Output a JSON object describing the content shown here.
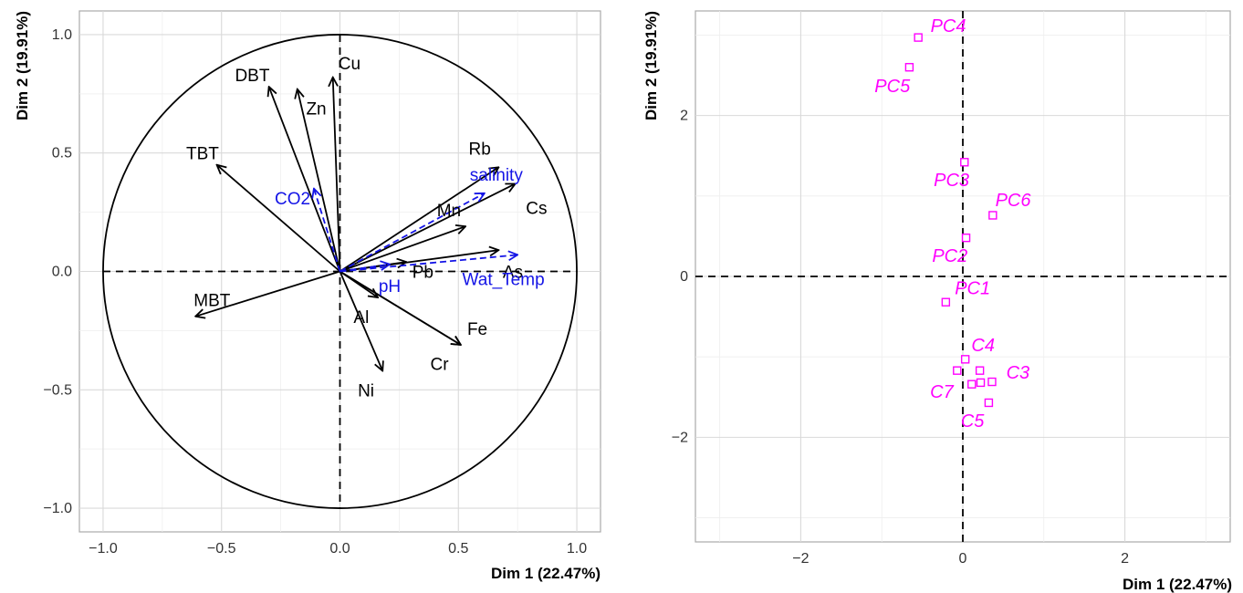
{
  "chart_data": [
    {
      "type": "scatter",
      "subtype": "pca-variable-correlation-circle",
      "xlabel": "Dim 1 (22.47%)",
      "ylabel": "Dim 2 (19.91%)",
      "xlim": [
        -1.1,
        1.1
      ],
      "ylim": [
        -1.1,
        1.1
      ],
      "xticks": [
        -1.0,
        -0.5,
        0.0,
        0.5,
        1.0
      ],
      "yticks": [
        -1.0,
        -0.5,
        0.0,
        0.5,
        1.0
      ],
      "xtick_labels": [
        "−1.0",
        "−0.5",
        "0.0",
        "0.5",
        "1.0"
      ],
      "ytick_labels": [
        "−1.0",
        "−0.5",
        "0.0",
        "0.5",
        "1.0"
      ],
      "grid": true,
      "unit_circle": true,
      "colors": {
        "active": "#000000",
        "supplementary": "#1414e6"
      },
      "active_variables": [
        {
          "name": "Cu",
          "x": -0.03,
          "y": 0.82,
          "lx": 0.04,
          "ly": 0.88
        },
        {
          "name": "DBT",
          "x": -0.3,
          "y": 0.78,
          "lx": -0.37,
          "ly": 0.83
        },
        {
          "name": "Zn",
          "x": -0.18,
          "y": 0.77,
          "lx": -0.1,
          "ly": 0.69
        },
        {
          "name": "TBT",
          "x": -0.52,
          "y": 0.45,
          "lx": -0.58,
          "ly": 0.5
        },
        {
          "name": "Rb",
          "x": 0.67,
          "y": 0.44,
          "lx": 0.59,
          "ly": 0.52
        },
        {
          "name": "Cs",
          "x": 0.74,
          "y": 0.37,
          "lx": 0.83,
          "ly": 0.27
        },
        {
          "name": "Mn",
          "x": 0.53,
          "y": 0.19,
          "lx": 0.46,
          "ly": 0.26
        },
        {
          "name": "As",
          "x": 0.67,
          "y": 0.09,
          "lx": 0.73,
          "ly": 0.0
        },
        {
          "name": "Pb",
          "x": 0.28,
          "y": 0.04,
          "lx": 0.35,
          "ly": 0.0
        },
        {
          "name": "Al",
          "x": 0.16,
          "y": -0.11,
          "lx": 0.09,
          "ly": -0.19
        },
        {
          "name": "Fe",
          "x": 0.51,
          "y": -0.31,
          "lx": 0.58,
          "ly": -0.24
        },
        {
          "name": "Cr",
          "x": 0.51,
          "y": -0.31,
          "lx": 0.42,
          "ly": -0.39
        },
        {
          "name": "Ni",
          "x": 0.18,
          "y": -0.42,
          "lx": 0.11,
          "ly": -0.5
        },
        {
          "name": "MBT",
          "x": -0.61,
          "y": -0.19,
          "lx": -0.54,
          "ly": -0.12
        }
      ],
      "supplementary_variables": [
        {
          "name": "salinity",
          "x": 0.61,
          "y": 0.33,
          "lx": 0.66,
          "ly": 0.41
        },
        {
          "name": "CO2",
          "x": -0.11,
          "y": 0.35,
          "lx": -0.2,
          "ly": 0.31
        },
        {
          "name": "pH",
          "x": 0.21,
          "y": 0.03,
          "lx": 0.21,
          "ly": -0.06
        },
        {
          "name": "Wat_Temp",
          "x": 0.75,
          "y": 0.07,
          "lx": 0.69,
          "ly": -0.03
        }
      ]
    },
    {
      "type": "scatter",
      "subtype": "pca-individuals",
      "xlabel": "Dim 1 (22.47%)",
      "ylabel": "Dim 2 (19.91%)",
      "xlim": [
        -3.3,
        3.3
      ],
      "ylim": [
        -3.3,
        3.3
      ],
      "xticks": [
        -2,
        0,
        2
      ],
      "yticks": [
        -2,
        0,
        2
      ],
      "xtick_labels": [
        "−2",
        "0",
        "2"
      ],
      "ytick_labels": [
        "−2",
        "0",
        "2"
      ],
      "grid": true,
      "color": "#ff00ff",
      "marker": "open-square",
      "points": [
        {
          "name": "PC4",
          "x": -0.55,
          "y": 2.97,
          "lx": -0.18,
          "ly": 3.12
        },
        {
          "name": "PC5",
          "x": -0.66,
          "y": 2.6,
          "lx": -0.87,
          "ly": 2.37
        },
        {
          "name": "PC3",
          "x": 0.02,
          "y": 1.42,
          "lx": -0.14,
          "ly": 1.2
        },
        {
          "name": "PC6",
          "x": 0.37,
          "y": 0.76,
          "lx": 0.62,
          "ly": 0.95
        },
        {
          "name": "PC2",
          "x": 0.04,
          "y": 0.48,
          "lx": -0.16,
          "ly": 0.26
        },
        {
          "name": "PC1",
          "x": -0.21,
          "y": -0.32,
          "lx": 0.12,
          "ly": -0.14
        }
      ],
      "unlabeled_points": [
        {
          "x": 0.03,
          "y": -1.03
        },
        {
          "x": -0.07,
          "y": -1.17
        },
        {
          "x": 0.21,
          "y": -1.17
        },
        {
          "x": 0.11,
          "y": -1.34
        },
        {
          "x": 0.22,
          "y": -1.32
        },
        {
          "x": 0.36,
          "y": -1.31
        },
        {
          "x": 0.32,
          "y": -1.57
        }
      ],
      "cluster_labels": [
        {
          "name": "C4",
          "lx": 0.25,
          "ly": -0.85
        },
        {
          "name": "C3",
          "lx": 0.68,
          "ly": -1.19
        },
        {
          "name": "C7",
          "lx": -0.26,
          "ly": -1.43
        },
        {
          "name": "C5",
          "lx": 0.12,
          "ly": -1.79
        }
      ]
    }
  ]
}
